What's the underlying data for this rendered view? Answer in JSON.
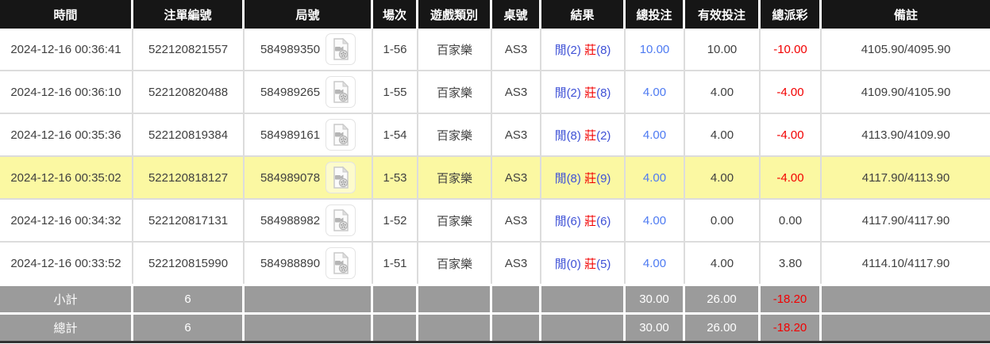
{
  "table": {
    "columns": [
      {
        "key": "time",
        "label": "時間"
      },
      {
        "key": "bet_id",
        "label": "注單編號"
      },
      {
        "key": "round_id",
        "label": "局號"
      },
      {
        "key": "session",
        "label": "場次"
      },
      {
        "key": "game_type",
        "label": "遊戲類別"
      },
      {
        "key": "table_id",
        "label": "桌號"
      },
      {
        "key": "result",
        "label": "結果"
      },
      {
        "key": "total_bet",
        "label": "總投注"
      },
      {
        "key": "valid_bet",
        "label": "有效投注"
      },
      {
        "key": "payout",
        "label": "總派彩"
      },
      {
        "key": "remark",
        "label": "備註"
      }
    ],
    "rows": [
      {
        "time": "2024-12-16 00:36:41",
        "bet_id": "522120821557",
        "round_id": "584989350",
        "session": "1-56",
        "game_type": "百家樂",
        "table_id": "AS3",
        "result_player": "閒(2)",
        "result_banker": "莊",
        "result_banker_score": "(8)",
        "total_bet": "10.00",
        "valid_bet": "10.00",
        "payout": "-10.00",
        "remark": "4105.90/4095.90",
        "highlighted": false
      },
      {
        "time": "2024-12-16 00:36:10",
        "bet_id": "522120820488",
        "round_id": "584989265",
        "session": "1-55",
        "game_type": "百家樂",
        "table_id": "AS3",
        "result_player": "閒(2)",
        "result_banker": "莊",
        "result_banker_score": "(8)",
        "total_bet": "4.00",
        "valid_bet": "4.00",
        "payout": "-4.00",
        "remark": "4109.90/4105.90",
        "highlighted": false
      },
      {
        "time": "2024-12-16 00:35:36",
        "bet_id": "522120819384",
        "round_id": "584989161",
        "session": "1-54",
        "game_type": "百家樂",
        "table_id": "AS3",
        "result_player": "閒(8)",
        "result_banker": "莊",
        "result_banker_score": "(2)",
        "total_bet": "4.00",
        "valid_bet": "4.00",
        "payout": "-4.00",
        "remark": "4113.90/4109.90",
        "highlighted": false
      },
      {
        "time": "2024-12-16 00:35:02",
        "bet_id": "522120818127",
        "round_id": "584989078",
        "session": "1-53",
        "game_type": "百家樂",
        "table_id": "AS3",
        "result_player": "閒(8)",
        "result_banker": "莊",
        "result_banker_score": "(9)",
        "total_bet": "4.00",
        "valid_bet": "4.00",
        "payout": "-4.00",
        "remark": "4117.90/4113.90",
        "highlighted": true
      },
      {
        "time": "2024-12-16 00:34:32",
        "bet_id": "522120817131",
        "round_id": "584988982",
        "session": "1-52",
        "game_type": "百家樂",
        "table_id": "AS3",
        "result_player": "閒(6)",
        "result_banker": "莊",
        "result_banker_score": "(6)",
        "total_bet": "4.00",
        "valid_bet": "0.00",
        "payout": "0.00",
        "remark": "4117.90/4117.90",
        "highlighted": false
      },
      {
        "time": "2024-12-16 00:33:52",
        "bet_id": "522120815990",
        "round_id": "584988890",
        "session": "1-51",
        "game_type": "百家樂",
        "table_id": "AS3",
        "result_player": "閒(0)",
        "result_banker": "莊",
        "result_banker_score": "(5)",
        "total_bet": "4.00",
        "valid_bet": "4.00",
        "payout": "3.80",
        "remark": "4114.10/4117.90",
        "highlighted": false
      }
    ],
    "subtotal": {
      "label": "小計",
      "count": "6",
      "total_bet": "30.00",
      "valid_bet": "26.00",
      "payout": "-18.20"
    },
    "total": {
      "label": "總計",
      "count": "6",
      "total_bet": "30.00",
      "valid_bet": "26.00",
      "payout": "-18.20"
    }
  },
  "icons": {
    "replay": "video-replay-icon"
  },
  "colors": {
    "header_bg": "#161616",
    "highlight_row": "#fbf8a2",
    "summary_bg": "#9b9b9b",
    "grid_line": "#dcdcdc",
    "amount_blue": "#4d7af2",
    "result_blue": "#3f51d6",
    "negative_red": "#f20000"
  }
}
